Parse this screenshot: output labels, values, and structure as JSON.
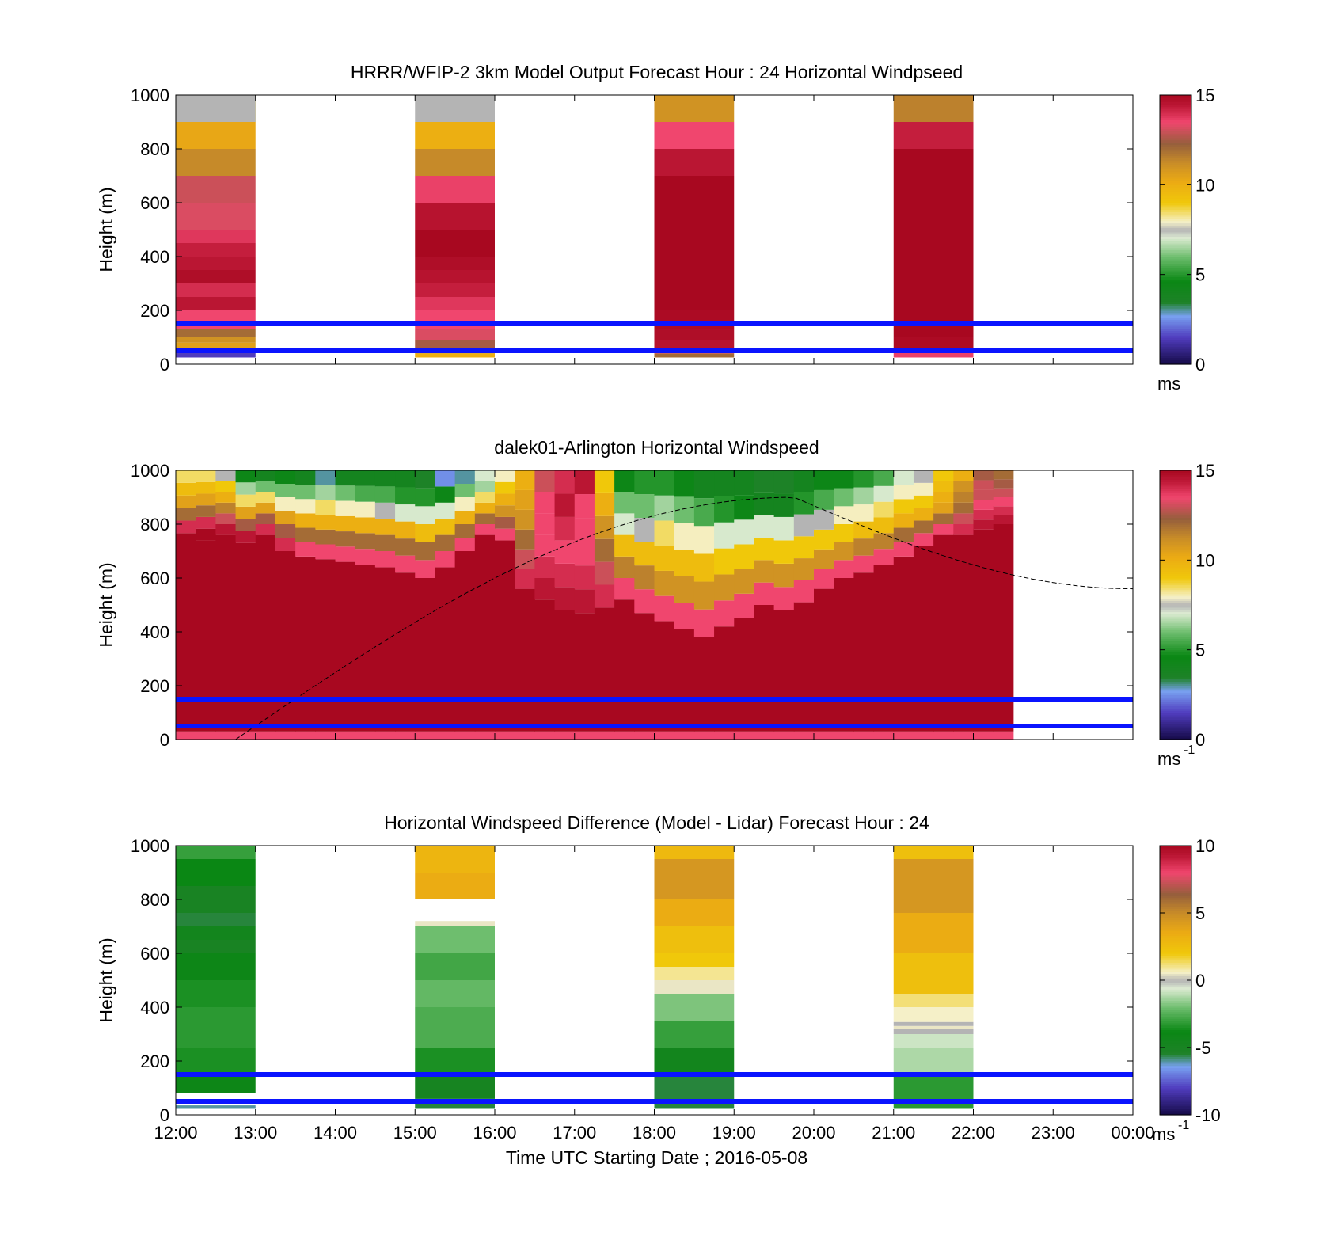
{
  "chart_data": [
    {
      "type": "heatmap",
      "title": "HRRR/WFIP-2 3km Model Output   Forecast Hour : 24 Horizontal Windpseed",
      "ylabel": "Height (m)",
      "xlabel": "",
      "x_tick_labels_shown": false,
      "x_ticks": [
        "12:00",
        "13:00",
        "14:00",
        "15:00",
        "16:00",
        "17:00",
        "18:00",
        "19:00",
        "20:00",
        "21:00",
        "22:00",
        "23:00",
        "00:00"
      ],
      "yticks": [
        0,
        200,
        400,
        600,
        800,
        1000
      ],
      "ylim": [
        0,
        1000
      ],
      "colorbar": {
        "min": 0,
        "max": 15,
        "ticks": [
          0,
          5,
          10,
          15
        ],
        "unit_label": "ms",
        "unit_sup": ""
      },
      "reference_lines_m": [
        50,
        150
      ],
      "columns": [
        {
          "start_hour": 0,
          "end_hour": 1,
          "bands": [
            [
              25,
              45,
              1.5
            ],
            [
              45,
              60,
              9.5
            ],
            [
              60,
              80,
              10.5
            ],
            [
              80,
              100,
              11
            ],
            [
              100,
              130,
              12
            ],
            [
              130,
              200,
              13.5
            ],
            [
              200,
              250,
              14.5
            ],
            [
              250,
              300,
              14
            ],
            [
              300,
              350,
              14.8
            ],
            [
              350,
              400,
              14.5
            ],
            [
              400,
              450,
              14.3
            ],
            [
              450,
              500,
              13.8
            ],
            [
              500,
              600,
              13.2
            ],
            [
              600,
              700,
              13
            ],
            [
              700,
              800,
              11.3
            ],
            [
              800,
              900,
              10.3
            ],
            [
              900,
              1000,
              9
            ]
          ]
        },
        {
          "start_hour": 3,
          "end_hour": 4,
          "bands": [
            [
              25,
              40,
              10
            ],
            [
              40,
              60,
              11
            ],
            [
              60,
              90,
              12.5
            ],
            [
              90,
              130,
              13.2
            ],
            [
              130,
              200,
              13.5
            ],
            [
              200,
              250,
              13.8
            ],
            [
              250,
              300,
              14.3
            ],
            [
              300,
              350,
              14.6
            ],
            [
              350,
              400,
              14.8
            ],
            [
              400,
              450,
              15
            ],
            [
              450,
              500,
              15
            ],
            [
              500,
              600,
              14.6
            ],
            [
              600,
              700,
              13.6
            ],
            [
              700,
              800,
              11.3
            ],
            [
              800,
              900,
              10
            ]
          ]
        },
        {
          "start_hour": 6,
          "end_hour": 7,
          "bands": [
            [
              25,
              40,
              12
            ],
            [
              40,
              60,
              13.6
            ],
            [
              60,
              90,
              14.6
            ],
            [
              90,
              130,
              14.8
            ],
            [
              130,
              200,
              14.9
            ],
            [
              200,
              700,
              15
            ],
            [
              700,
              800,
              14.5
            ],
            [
              800,
              900,
              13.5
            ],
            [
              900,
              1000,
              11
            ]
          ]
        },
        {
          "start_hour": 9,
          "end_hour": 10,
          "bands": [
            [
              25,
              45,
              13.6
            ],
            [
              45,
              100,
              14.9
            ],
            [
              100,
              800,
              15
            ],
            [
              800,
              900,
              14.3
            ],
            [
              900,
              1000,
              11.5
            ]
          ]
        }
      ],
      "gray_top_bands": [
        {
          "start_hour": 0,
          "end_hour": 1,
          "from_m": 900,
          "to_m": 1000
        },
        {
          "start_hour": 3,
          "end_hour": 4,
          "from_m": 900,
          "to_m": 1000
        }
      ]
    },
    {
      "type": "heatmap",
      "title": "dalek01-Arlington  Horizontal Windspeed",
      "ylabel": "Height (m)",
      "xlabel": "",
      "x_tick_labels_shown": false,
      "yticks": [
        0,
        200,
        400,
        600,
        800,
        1000
      ],
      "ylim": [
        0,
        1000
      ],
      "colorbar": {
        "min": 0,
        "max": 15,
        "ticks": [
          0,
          5,
          10,
          15
        ],
        "unit_label": "ms",
        "unit_sup": "-1"
      },
      "reference_lines_m": [
        50,
        150
      ],
      "time_step_hours": 0.25,
      "columns_start_hour": 0,
      "red_top_m": [
        720,
        740,
        760,
        730,
        760,
        700,
        680,
        670,
        660,
        650,
        640,
        620,
        600,
        640,
        700,
        760,
        740,
        560,
        520,
        480,
        470,
        490,
        520,
        470,
        440,
        410,
        380,
        420,
        450,
        500,
        480,
        510,
        560,
        600,
        620,
        650,
        680,
        720,
        760,
        760,
        780,
        800
      ],
      "upper_profile_speeds": [
        [
          15,
          14,
          12,
          10.5,
          9.5,
          8.5
        ],
        [
          15,
          14,
          12,
          10.5,
          9.5,
          8.5
        ],
        [
          14.5,
          13,
          11.5,
          10,
          9,
          7.5
        ],
        [
          14.5,
          12.5,
          10.5,
          8.5,
          6.5,
          4.5
        ],
        [
          14,
          12.5,
          10.5,
          8.5,
          6,
          4
        ],
        [
          14,
          12.5,
          10.5,
          8,
          6,
          4.5
        ],
        [
          13.5,
          12,
          10,
          8,
          6,
          4
        ],
        [
          13.5,
          12,
          10,
          8.5,
          6.5,
          3
        ],
        [
          13.5,
          12,
          10,
          8,
          6,
          4
        ],
        [
          13.5,
          12,
          10,
          8,
          5.5,
          4
        ],
        [
          13.5,
          12,
          10,
          7.5,
          5.5,
          4
        ],
        [
          13.5,
          12,
          10,
          7,
          5,
          4
        ],
        [
          13.5,
          12,
          9.5,
          7,
          5,
          3.5
        ],
        [
          13.5,
          12,
          9.5,
          7,
          4.5,
          2.5
        ],
        [
          13.5,
          12,
          10,
          8,
          6,
          3
        ],
        [
          13.5,
          12,
          10,
          8.5,
          6.5,
          7
        ],
        [
          13.5,
          12.5,
          11,
          10,
          9,
          8
        ],
        [
          14,
          13,
          12,
          11,
          10.5,
          10
        ],
        [
          14.5,
          14,
          13.5,
          13.5,
          13.5,
          13
        ],
        [
          14.5,
          14,
          13.5,
          14,
          14.5,
          14
        ],
        [
          14.5,
          14,
          13.5,
          13.5,
          13.5,
          14.5
        ],
        [
          14,
          13,
          12,
          11,
          10,
          9
        ],
        [
          13.5,
          11.5,
          9.5,
          7,
          6,
          4.5
        ],
        [
          13.5,
          11.5,
          9.5,
          7.5,
          6,
          5
        ],
        [
          13.5,
          11,
          9.5,
          8.5,
          6.5,
          5
        ],
        [
          13.5,
          11,
          9.5,
          8,
          6,
          4.5
        ],
        [
          13.5,
          11,
          9.5,
          8,
          5.5,
          4
        ],
        [
          13.5,
          11,
          9,
          7,
          5,
          4
        ],
        [
          13.5,
          11,
          9,
          7,
          4.5,
          4
        ],
        [
          13.5,
          11,
          9,
          7,
          4,
          3.5
        ],
        [
          13.5,
          11,
          9,
          7,
          4,
          3.5
        ],
        [
          13.5,
          11,
          9,
          7.5,
          5,
          4
        ],
        [
          13.5,
          11,
          9,
          7.5,
          5.5,
          4.5
        ],
        [
          13.5,
          11,
          9,
          8,
          6,
          4.5
        ],
        [
          13.5,
          11.5,
          9.5,
          8,
          6.5,
          5
        ],
        [
          13.5,
          11.5,
          9.5,
          8.5,
          7,
          5.5
        ],
        [
          13.5,
          12,
          10,
          9,
          8,
          7
        ],
        [
          13.5,
          12,
          10,
          9,
          8,
          7.5
        ],
        [
          13.5,
          12,
          10.5,
          10,
          9.5,
          9
        ],
        [
          14,
          13,
          12,
          11.5,
          11,
          10
        ],
        [
          14.5,
          14,
          13.5,
          13,
          13,
          12.5
        ],
        [
          14.5,
          14,
          13.5,
          13,
          12.5,
          12
        ]
      ],
      "data_end_hour": 10.5,
      "solar_curve": {
        "start_hour": 0.75,
        "peak_hour": 7.75,
        "peak_m": 900,
        "end_hour": 12,
        "end_m": 560
      }
    },
    {
      "type": "heatmap",
      "title": "Horizontal Windspeed Difference (Model - Lidar) Forecast Hour : 24",
      "ylabel": "Height (m)",
      "xlabel": "Time UTC  Starting Date ; 2016-05-08",
      "x_tick_labels_shown": true,
      "x_ticks": [
        "12:00",
        "13:00",
        "14:00",
        "15:00",
        "16:00",
        "17:00",
        "18:00",
        "19:00",
        "20:00",
        "21:00",
        "22:00",
        "23:00",
        "00:00"
      ],
      "yticks": [
        0,
        200,
        400,
        600,
        800,
        1000
      ],
      "ylim": [
        0,
        1000
      ],
      "colorbar": {
        "min": -10,
        "max": 10,
        "ticks": [
          -10,
          -5,
          0,
          5,
          10
        ],
        "unit_label": "ms",
        "unit_sup": "-1"
      },
      "reference_lines_m": [
        50,
        150
      ],
      "columns": [
        {
          "start_hour": 0,
          "end_hour": 1,
          "bands": [
            [
              25,
              35,
              -6
            ],
            [
              80,
              150,
              -4
            ],
            [
              150,
              250,
              -3.5
            ],
            [
              250,
              400,
              -3.2
            ],
            [
              400,
              500,
              -3.5
            ],
            [
              500,
              600,
              -4
            ],
            [
              600,
              650,
              -5
            ],
            [
              650,
              700,
              -4.5
            ],
            [
              700,
              750,
              -5.5
            ],
            [
              750,
              850,
              -5
            ],
            [
              850,
              950,
              -3.8
            ],
            [
              950,
              1000,
              -3
            ]
          ]
        },
        {
          "start_hour": 3,
          "end_hour": 4,
          "bands": [
            [
              25,
              60,
              -5.5
            ],
            [
              60,
              150,
              -4.8
            ],
            [
              150,
              250,
              -3.5
            ],
            [
              250,
              400,
              -2.6
            ],
            [
              400,
              500,
              -2.2
            ],
            [
              500,
              600,
              -2.8
            ],
            [
              600,
              700,
              -2
            ],
            [
              700,
              720,
              0.5
            ],
            [
              800,
              900,
              3.5
            ],
            [
              900,
              1000,
              3
            ]
          ]
        },
        {
          "start_hour": 6,
          "end_hour": 7,
          "bands": [
            [
              25,
              150,
              -5.5
            ],
            [
              150,
              250,
              -4.5
            ],
            [
              250,
              350,
              -3
            ],
            [
              350,
              450,
              -1.8
            ],
            [
              450,
              500,
              0.5
            ],
            [
              500,
              550,
              1
            ],
            [
              550,
              600,
              2
            ],
            [
              600,
              700,
              2.5
            ],
            [
              700,
              800,
              3.5
            ],
            [
              800,
              950,
              4.5
            ],
            [
              950,
              1000,
              2.8
            ]
          ]
        },
        {
          "start_hour": 9,
          "end_hour": 10,
          "bands": [
            [
              25,
              150,
              -3.2
            ],
            [
              150,
              250,
              -1.2
            ],
            [
              250,
              300,
              -0.8
            ],
            [
              300,
              320,
              0
            ],
            [
              320,
              330,
              0.5
            ],
            [
              330,
              345,
              0
            ],
            [
              345,
              400,
              0.6
            ],
            [
              400,
              450,
              1.2
            ],
            [
              450,
              600,
              2.5
            ],
            [
              600,
              750,
              3.5
            ],
            [
              750,
              950,
              4.5
            ],
            [
              950,
              1000,
              2.5
            ]
          ]
        }
      ]
    }
  ]
}
